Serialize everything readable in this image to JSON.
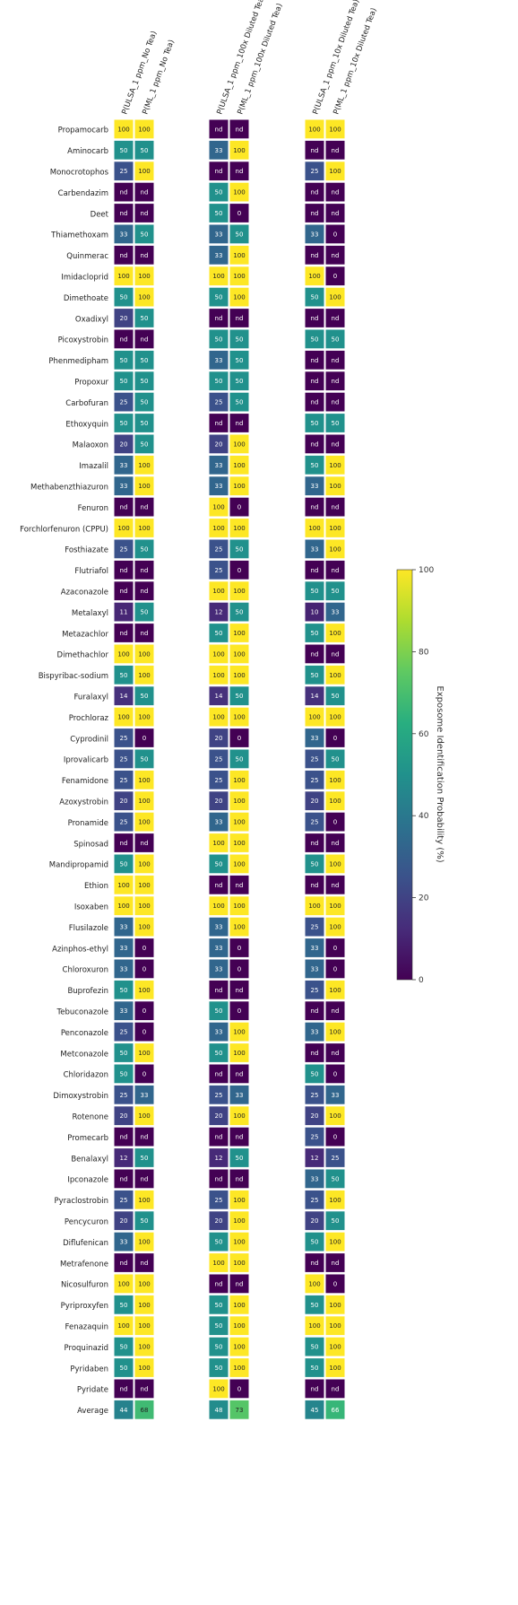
{
  "chart_data": {
    "type": "heatmap",
    "columns": [
      "P(ULSA_1 ppm_No Tea)",
      "P(ML_1 ppm_No Tea)",
      "P(ULSA_1 ppm_100x Diluted Tea)",
      "P(ML_1 ppm_100x Diluted Tea)",
      "P(ULSA_1 ppm_10x Diluted Tea)",
      "P(ML_1 ppm_10x Diluted Tea)"
    ],
    "column_groups": [
      [
        0,
        1
      ],
      [
        2,
        3
      ],
      [
        4,
        5
      ]
    ],
    "rows": [
      "Propamocarb",
      "Aminocarb",
      "Monocrotophos",
      "Carbendazim",
      "Deet",
      "Thiamethoxam",
      "Quinmerac",
      "Imidacloprid",
      "Dimethoate",
      "Oxadixyl",
      "Picoxystrobin",
      "Phenmedipham",
      "Propoxur",
      "Carbofuran",
      "Ethoxyquin",
      "Malaoxon",
      "Imazalil",
      "Methabenzthiazuron",
      "Fenuron",
      "Forchlorfenuron (CPPU)",
      "Fosthiazate",
      "Flutriafol",
      "Azaconazole",
      "Metalaxyl",
      "Metazachlor",
      "Dimethachlor",
      "Bispyribac-sodium",
      "Furalaxyl",
      "Prochloraz",
      "Cyprodinil",
      "Iprovalicarb",
      "Fenamidone",
      "Azoxystrobin",
      "Pronamide",
      "Spinosad",
      "Mandipropamid",
      "Ethion",
      "Isoxaben",
      "Flusilazole",
      "Azinphos-ethyl",
      "Chloroxuron",
      "Buprofezin",
      "Tebuconazole",
      "Penconazole",
      "Metconazole",
      "Chloridazon",
      "Dimoxystrobin",
      "Rotenone",
      "Promecarb",
      "Benalaxyl",
      "Ipconazole",
      "Pyraclostrobin",
      "Pencycuron",
      "Diflufenican",
      "Metrafenone",
      "Nicosulfuron",
      "Pyriproxyfen",
      "Fenazaquin",
      "Proquinazid",
      "Pyridaben",
      "Pyridate",
      "Average"
    ],
    "values": [
      [
        "100",
        "100",
        "nd",
        "nd",
        "100",
        "100"
      ],
      [
        "50",
        "50",
        "33",
        "100",
        "nd",
        "nd"
      ],
      [
        "25",
        "100",
        "nd",
        "nd",
        "25",
        "100"
      ],
      [
        "nd",
        "nd",
        "50",
        "100",
        "nd",
        "nd"
      ],
      [
        "nd",
        "nd",
        "50",
        "0",
        "nd",
        "nd"
      ],
      [
        "33",
        "50",
        "33",
        "50",
        "33",
        "0"
      ],
      [
        "nd",
        "nd",
        "33",
        "100",
        "nd",
        "nd"
      ],
      [
        "100",
        "100",
        "100",
        "100",
        "100",
        "0"
      ],
      [
        "50",
        "100",
        "50",
        "100",
        "50",
        "100"
      ],
      [
        "20",
        "50",
        "nd",
        "nd",
        "nd",
        "nd"
      ],
      [
        "nd",
        "nd",
        "50",
        "50",
        "50",
        "50"
      ],
      [
        "50",
        "50",
        "33",
        "50",
        "nd",
        "nd"
      ],
      [
        "50",
        "50",
        "50",
        "50",
        "nd",
        "nd"
      ],
      [
        "25",
        "50",
        "25",
        "50",
        "nd",
        "nd"
      ],
      [
        "50",
        "50",
        "nd",
        "nd",
        "50",
        "50"
      ],
      [
        "20",
        "50",
        "20",
        "100",
        "nd",
        "nd"
      ],
      [
        "33",
        "100",
        "33",
        "100",
        "50",
        "100"
      ],
      [
        "33",
        "100",
        "33",
        "100",
        "33",
        "100"
      ],
      [
        "nd",
        "nd",
        "100",
        "0",
        "nd",
        "nd"
      ],
      [
        "100",
        "100",
        "100",
        "100",
        "100",
        "100"
      ],
      [
        "25",
        "50",
        "25",
        "50",
        "33",
        "100"
      ],
      [
        "nd",
        "nd",
        "25",
        "0",
        "nd",
        "nd"
      ],
      [
        "nd",
        "nd",
        "100",
        "100",
        "50",
        "50"
      ],
      [
        "11",
        "50",
        "12",
        "50",
        "10",
        "33"
      ],
      [
        "nd",
        "nd",
        "50",
        "100",
        "50",
        "100"
      ],
      [
        "100",
        "100",
        "100",
        "100",
        "nd",
        "nd"
      ],
      [
        "50",
        "100",
        "100",
        "100",
        "50",
        "100"
      ],
      [
        "14",
        "50",
        "14",
        "50",
        "14",
        "50"
      ],
      [
        "100",
        "100",
        "100",
        "100",
        "100",
        "100"
      ],
      [
        "25",
        "0",
        "20",
        "0",
        "33",
        "0"
      ],
      [
        "25",
        "50",
        "25",
        "50",
        "25",
        "50"
      ],
      [
        "25",
        "100",
        "25",
        "100",
        "25",
        "100"
      ],
      [
        "20",
        "100",
        "20",
        "100",
        "20",
        "100"
      ],
      [
        "25",
        "100",
        "33",
        "100",
        "25",
        "0"
      ],
      [
        "nd",
        "nd",
        "100",
        "100",
        "nd",
        "nd"
      ],
      [
        "50",
        "100",
        "50",
        "100",
        "50",
        "100"
      ],
      [
        "100",
        "100",
        "nd",
        "nd",
        "nd",
        "nd"
      ],
      [
        "100",
        "100",
        "100",
        "100",
        "100",
        "100"
      ],
      [
        "33",
        "100",
        "33",
        "100",
        "25",
        "100"
      ],
      [
        "33",
        "0",
        "33",
        "0",
        "33",
        "0"
      ],
      [
        "33",
        "0",
        "33",
        "0",
        "33",
        "0"
      ],
      [
        "50",
        "100",
        "nd",
        "nd",
        "25",
        "100"
      ],
      [
        "33",
        "0",
        "50",
        "0",
        "nd",
        "nd"
      ],
      [
        "25",
        "0",
        "33",
        "100",
        "33",
        "100"
      ],
      [
        "50",
        "100",
        "50",
        "100",
        "nd",
        "nd"
      ],
      [
        "50",
        "0",
        "nd",
        "nd",
        "50",
        "0"
      ],
      [
        "25",
        "33",
        "25",
        "33",
        "25",
        "33"
      ],
      [
        "20",
        "100",
        "20",
        "100",
        "20",
        "100"
      ],
      [
        "nd",
        "nd",
        "nd",
        "nd",
        "25",
        "0"
      ],
      [
        "12",
        "50",
        "12",
        "50",
        "12",
        "25"
      ],
      [
        "nd",
        "nd",
        "nd",
        "nd",
        "33",
        "50"
      ],
      [
        "25",
        "100",
        "25",
        "100",
        "25",
        "100"
      ],
      [
        "20",
        "50",
        "20",
        "100",
        "20",
        "50"
      ],
      [
        "33",
        "100",
        "50",
        "100",
        "50",
        "100"
      ],
      [
        "nd",
        "nd",
        "100",
        "100",
        "nd",
        "nd"
      ],
      [
        "100",
        "100",
        "nd",
        "nd",
        "100",
        "0"
      ],
      [
        "50",
        "100",
        "50",
        "100",
        "50",
        "100"
      ],
      [
        "100",
        "100",
        "50",
        "100",
        "100",
        "100"
      ],
      [
        "50",
        "100",
        "50",
        "100",
        "50",
        "100"
      ],
      [
        "50",
        "100",
        "50",
        "100",
        "50",
        "100"
      ],
      [
        "nd",
        "nd",
        "100",
        "0",
        "nd",
        "nd"
      ],
      [
        "44",
        "68",
        "48",
        "73",
        "45",
        "66"
      ]
    ],
    "colormap": "viridis",
    "colorbar": {
      "label": "Exposome Identification Probability (%)",
      "range": [
        0,
        100
      ],
      "ticks": [
        0,
        20,
        40,
        60,
        80,
        100
      ]
    },
    "nd_value": 0
  }
}
